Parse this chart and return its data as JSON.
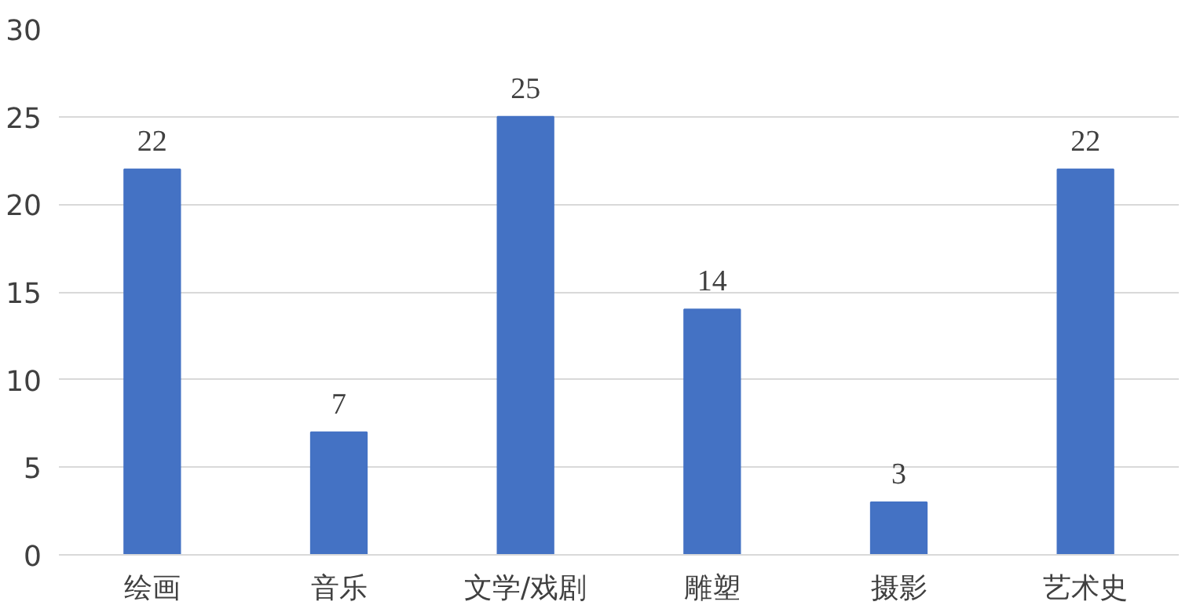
{
  "chart_data": {
    "type": "bar",
    "categories": [
      "绘画",
      "音乐",
      "文学/戏剧",
      "雕塑",
      "摄影",
      "艺术史"
    ],
    "values": [
      22,
      7,
      25,
      14,
      3,
      22
    ],
    "color": "#4472c4",
    "ylim": [
      0,
      30
    ],
    "yticks": [
      0,
      5,
      10,
      15,
      20,
      25,
      30
    ],
    "grid": "y",
    "data_labels": true
  }
}
